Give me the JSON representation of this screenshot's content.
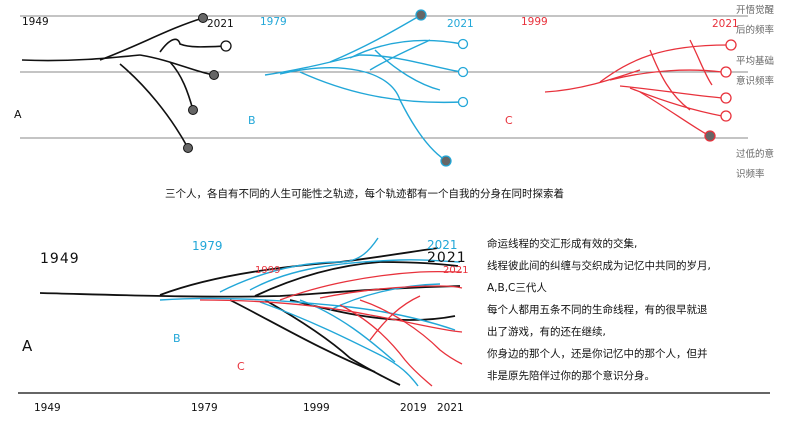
{
  "top": {
    "panel_a": {
      "start_year": "1949",
      "end_year": "2021",
      "letter": "A",
      "color": "#111111"
    },
    "panel_b": {
      "start_year": "1979",
      "end_year": "2021",
      "letter": "B",
      "color": "#22a7d8"
    },
    "panel_c": {
      "start_year": "1999",
      "end_year": "2021",
      "letter": "C",
      "color": "#e8323c"
    },
    "levels": [
      {
        "lines": [
          "开悟觉醒",
          "后的频率"
        ]
      },
      {
        "lines": [
          "平均基础",
          "意识频率"
        ]
      },
      {
        "lines": [
          "过低的意",
          "识频率"
        ]
      }
    ],
    "caption": "三个人，各自有不同的人生可能性之轨迹，每个轨迹都有一个自我的分身在同时探索着"
  },
  "bottom": {
    "labels": {
      "year_1949": "1949",
      "year_1979": "1979",
      "year_1999": "1999",
      "end_2021_blue": "2021",
      "end_2021_black": "2021",
      "end_2021_red": "2021",
      "letter_a": "A",
      "letter_b": "B",
      "letter_c": "C"
    },
    "axis_years": [
      "1949",
      "1979",
      "1999",
      "2019",
      "2021"
    ],
    "paragraph_1": [
      "命运线程的交汇形成有效的交集,",
      "线程彼此间的纠缠与交织成为记忆中共同的岁月,",
      "A,B,C三代人"
    ],
    "paragraph_2": [
      "每个人都用五条不同的生命线程，有的很早就退",
      "出了游戏，有的还在继续,",
      "你身边的那个人，还是你记忆中的那个人，但并",
      "非是原先陪伴过你的那个意识分身。"
    ]
  }
}
